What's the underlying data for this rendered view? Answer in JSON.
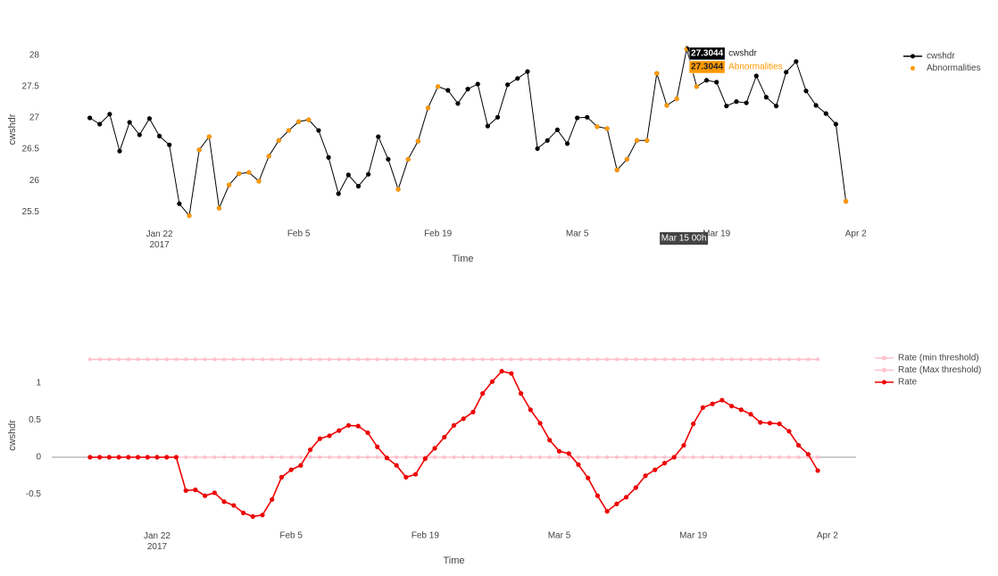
{
  "chart_data": [
    {
      "type": "line",
      "xlabel": "Time",
      "ylabel": "cwshdr",
      "x": [
        "2017-01-15",
        "2017-01-16",
        "2017-01-17",
        "2017-01-18",
        "2017-01-19",
        "2017-01-20",
        "2017-01-21",
        "2017-01-22",
        "2017-01-23",
        "2017-01-24",
        "2017-01-25",
        "2017-01-26",
        "2017-01-27",
        "2017-01-28",
        "2017-01-29",
        "2017-01-30",
        "2017-01-31",
        "2017-02-01",
        "2017-02-02",
        "2017-02-03",
        "2017-02-04",
        "2017-02-05",
        "2017-02-06",
        "2017-02-07",
        "2017-02-08",
        "2017-02-09",
        "2017-02-10",
        "2017-02-11",
        "2017-02-12",
        "2017-02-13",
        "2017-02-14",
        "2017-02-15",
        "2017-02-16",
        "2017-02-17",
        "2017-02-18",
        "2017-02-19",
        "2017-02-20",
        "2017-02-21",
        "2017-02-22",
        "2017-02-23",
        "2017-02-24",
        "2017-02-25",
        "2017-02-26",
        "2017-02-27",
        "2017-02-28",
        "2017-03-01",
        "2017-03-02",
        "2017-03-03",
        "2017-03-04",
        "2017-03-05",
        "2017-03-06",
        "2017-03-07",
        "2017-03-08",
        "2017-03-09",
        "2017-03-10",
        "2017-03-11",
        "2017-03-12",
        "2017-03-13",
        "2017-03-14",
        "2017-03-15",
        "2017-03-16",
        "2017-03-17",
        "2017-03-18",
        "2017-03-19",
        "2017-03-20",
        "2017-03-21",
        "2017-03-22",
        "2017-03-23",
        "2017-03-24",
        "2017-03-25",
        "2017-03-26",
        "2017-03-27",
        "2017-03-28",
        "2017-03-29",
        "2017-03-30",
        "2017-03-31",
        "2017-04-01"
      ],
      "series": [
        {
          "name": "cwshdr",
          "color": "#000000",
          "mode": "lines+markers",
          "values": [
            27.0,
            26.9,
            27.06,
            26.47,
            26.93,
            26.73,
            26.99,
            26.71,
            26.57,
            25.63,
            25.44,
            26.49,
            26.7,
            25.56,
            25.93,
            26.11,
            26.13,
            25.99,
            26.39,
            26.64,
            26.8,
            26.94,
            26.97,
            26.8,
            26.37,
            25.79,
            26.09,
            25.91,
            26.1,
            26.7,
            26.34,
            25.86,
            26.34,
            26.63,
            27.16,
            27.5,
            27.44,
            27.23,
            27.46,
            27.54,
            26.87,
            27.01,
            27.53,
            27.63,
            27.74,
            26.51,
            26.64,
            26.81,
            26.59,
            27.0,
            27.01,
            26.86,
            26.83,
            26.17,
            26.34,
            26.64,
            26.64,
            27.71,
            27.2,
            27.3044,
            28.1,
            27.5,
            27.6,
            27.57,
            27.19,
            27.26,
            27.24,
            27.67,
            27.33,
            27.19,
            27.73,
            27.9,
            27.43,
            27.2,
            27.07,
            26.9,
            25.67
          ]
        },
        {
          "name": "Abnormalities",
          "color": "#ff9900",
          "mode": "markers",
          "values": [
            null,
            null,
            null,
            null,
            null,
            null,
            null,
            null,
            null,
            null,
            25.44,
            26.49,
            26.7,
            25.56,
            25.93,
            26.11,
            26.13,
            25.99,
            26.39,
            26.64,
            26.8,
            26.94,
            26.97,
            null,
            null,
            null,
            null,
            null,
            null,
            null,
            null,
            25.86,
            26.34,
            26.63,
            27.16,
            27.5,
            null,
            null,
            null,
            null,
            null,
            null,
            null,
            null,
            null,
            null,
            null,
            null,
            null,
            null,
            null,
            26.86,
            26.83,
            26.17,
            26.34,
            26.64,
            26.64,
            27.71,
            27.2,
            27.3044,
            28.1,
            27.5,
            null,
            null,
            null,
            null,
            null,
            null,
            null,
            null,
            null,
            null,
            null,
            null,
            null,
            null,
            25.67
          ]
        }
      ],
      "xlim": [
        "2017-01-11",
        "2017-04-04"
      ],
      "xticks": [
        {
          "value": "2017-01-22",
          "label": "Jan 22\n2017"
        },
        {
          "value": "2017-02-05",
          "label": "Feb 5"
        },
        {
          "value": "2017-02-19",
          "label": "Feb 19"
        },
        {
          "value": "2017-03-05",
          "label": "Mar 5"
        },
        {
          "value": "2017-03-19",
          "label": "Mar 19"
        },
        {
          "value": "2017-04-02",
          "label": "Apr 2"
        }
      ],
      "ylim": [
        25.39,
        28.24
      ],
      "yticks": [
        25.5,
        26,
        26.5,
        27,
        27.5,
        28
      ],
      "grid": false,
      "zeroline": false,
      "legend": "right",
      "hover": {
        "index": 59,
        "x_label": "Mar 15 00h"
      }
    },
    {
      "type": "line",
      "xlabel": "Time",
      "ylabel": "cwshdr",
      "x": [
        "2017-01-15",
        "2017-01-16",
        "2017-01-17",
        "2017-01-18",
        "2017-01-19",
        "2017-01-20",
        "2017-01-21",
        "2017-01-22",
        "2017-01-23",
        "2017-01-24",
        "2017-01-25",
        "2017-01-26",
        "2017-01-27",
        "2017-01-28",
        "2017-01-29",
        "2017-01-30",
        "2017-01-31",
        "2017-02-01",
        "2017-02-02",
        "2017-02-03",
        "2017-02-04",
        "2017-02-05",
        "2017-02-06",
        "2017-02-07",
        "2017-02-08",
        "2017-02-09",
        "2017-02-10",
        "2017-02-11",
        "2017-02-12",
        "2017-02-13",
        "2017-02-14",
        "2017-02-15",
        "2017-02-16",
        "2017-02-17",
        "2017-02-18",
        "2017-02-19",
        "2017-02-20",
        "2017-02-21",
        "2017-02-22",
        "2017-02-23",
        "2017-02-24",
        "2017-02-25",
        "2017-02-26",
        "2017-02-27",
        "2017-02-28",
        "2017-03-01",
        "2017-03-02",
        "2017-03-03",
        "2017-03-04",
        "2017-03-05",
        "2017-03-06",
        "2017-03-07",
        "2017-03-08",
        "2017-03-09",
        "2017-03-10",
        "2017-03-11",
        "2017-03-12",
        "2017-03-13",
        "2017-03-14",
        "2017-03-15",
        "2017-03-16",
        "2017-03-17",
        "2017-03-18",
        "2017-03-19",
        "2017-03-20",
        "2017-03-21",
        "2017-03-22",
        "2017-03-23",
        "2017-03-24",
        "2017-03-25",
        "2017-03-26",
        "2017-03-27",
        "2017-03-28",
        "2017-03-29",
        "2017-03-30",
        "2017-03-31",
        "2017-04-01"
      ],
      "series": [
        {
          "name": "Rate (min threshold)",
          "color": "#ffc0cb",
          "mode": "lines+markers",
          "values": [
            0,
            0,
            0,
            0,
            0,
            0,
            0,
            0,
            0,
            0,
            0,
            0,
            0,
            0,
            0,
            0,
            0,
            0,
            0,
            0,
            0,
            0,
            0,
            0,
            0,
            0,
            0,
            0,
            0,
            0,
            0,
            0,
            0,
            0,
            0,
            0,
            0,
            0,
            0,
            0,
            0,
            0,
            0,
            0,
            0,
            0,
            0,
            0,
            0,
            0,
            0,
            0,
            0,
            0,
            0,
            0,
            0,
            0,
            0,
            0,
            0,
            0,
            0,
            0,
            0,
            0,
            0,
            0,
            0,
            0,
            0,
            0,
            0,
            0,
            0,
            0,
            0
          ]
        },
        {
          "name": "Rate (Max threshold)",
          "color": "#ffc0cb",
          "mode": "lines+markers",
          "values": [
            1.32,
            1.32,
            1.32,
            1.32,
            1.32,
            1.32,
            1.32,
            1.32,
            1.32,
            1.32,
            1.32,
            1.32,
            1.32,
            1.32,
            1.32,
            1.32,
            1.32,
            1.32,
            1.32,
            1.32,
            1.32,
            1.32,
            1.32,
            1.32,
            1.32,
            1.32,
            1.32,
            1.32,
            1.32,
            1.32,
            1.32,
            1.32,
            1.32,
            1.32,
            1.32,
            1.32,
            1.32,
            1.32,
            1.32,
            1.32,
            1.32,
            1.32,
            1.32,
            1.32,
            1.32,
            1.32,
            1.32,
            1.32,
            1.32,
            1.32,
            1.32,
            1.32,
            1.32,
            1.32,
            1.32,
            1.32,
            1.32,
            1.32,
            1.32,
            1.32,
            1.32,
            1.32,
            1.32,
            1.32,
            1.32,
            1.32,
            1.32,
            1.32,
            1.32,
            1.32,
            1.32,
            1.32,
            1.32,
            1.32,
            1.32,
            1.32,
            1.32
          ]
        },
        {
          "name": "Rate",
          "color": "#ee0000",
          "mode": "lines+markers",
          "values": [
            0,
            0,
            0,
            0,
            0,
            0,
            0,
            0,
            0,
            0,
            -0.45,
            -0.44,
            -0.52,
            -0.48,
            -0.6,
            -0.65,
            -0.75,
            -0.8,
            -0.78,
            -0.57,
            -0.27,
            -0.17,
            -0.11,
            0.1,
            0.25,
            0.29,
            0.36,
            0.43,
            0.42,
            0.33,
            0.14,
            -0.01,
            -0.11,
            -0.27,
            -0.23,
            -0.02,
            0.12,
            0.27,
            0.43,
            0.52,
            0.61,
            0.86,
            1.02,
            1.16,
            1.13,
            0.86,
            0.64,
            0.46,
            0.23,
            0.08,
            0.05,
            -0.1,
            -0.28,
            -0.52,
            -0.73,
            -0.63,
            -0.54,
            -0.41,
            -0.25,
            -0.17,
            -0.08,
            0,
            0.16,
            0.45,
            0.67,
            0.72,
            0.77,
            0.69,
            0.64,
            0.58,
            0.47,
            0.46,
            0.45,
            0.35,
            0.16,
            0.04,
            -0.18
          ]
        }
      ],
      "xlim": [
        "2017-01-11",
        "2017-04-05"
      ],
      "xticks": [
        {
          "value": "2017-01-22",
          "label": "Jan 22\n2017"
        },
        {
          "value": "2017-02-05",
          "label": "Feb 5"
        },
        {
          "value": "2017-02-19",
          "label": "Feb 19"
        },
        {
          "value": "2017-03-05",
          "label": "Mar 5"
        },
        {
          "value": "2017-03-19",
          "label": "Mar 19"
        },
        {
          "value": "2017-04-02",
          "label": "Apr 2"
        }
      ],
      "ylim": [
        -0.94,
        1.53
      ],
      "yticks": [
        -0.5,
        0,
        0.5,
        1
      ],
      "grid": false,
      "zeroline": true,
      "legend": "right"
    }
  ]
}
